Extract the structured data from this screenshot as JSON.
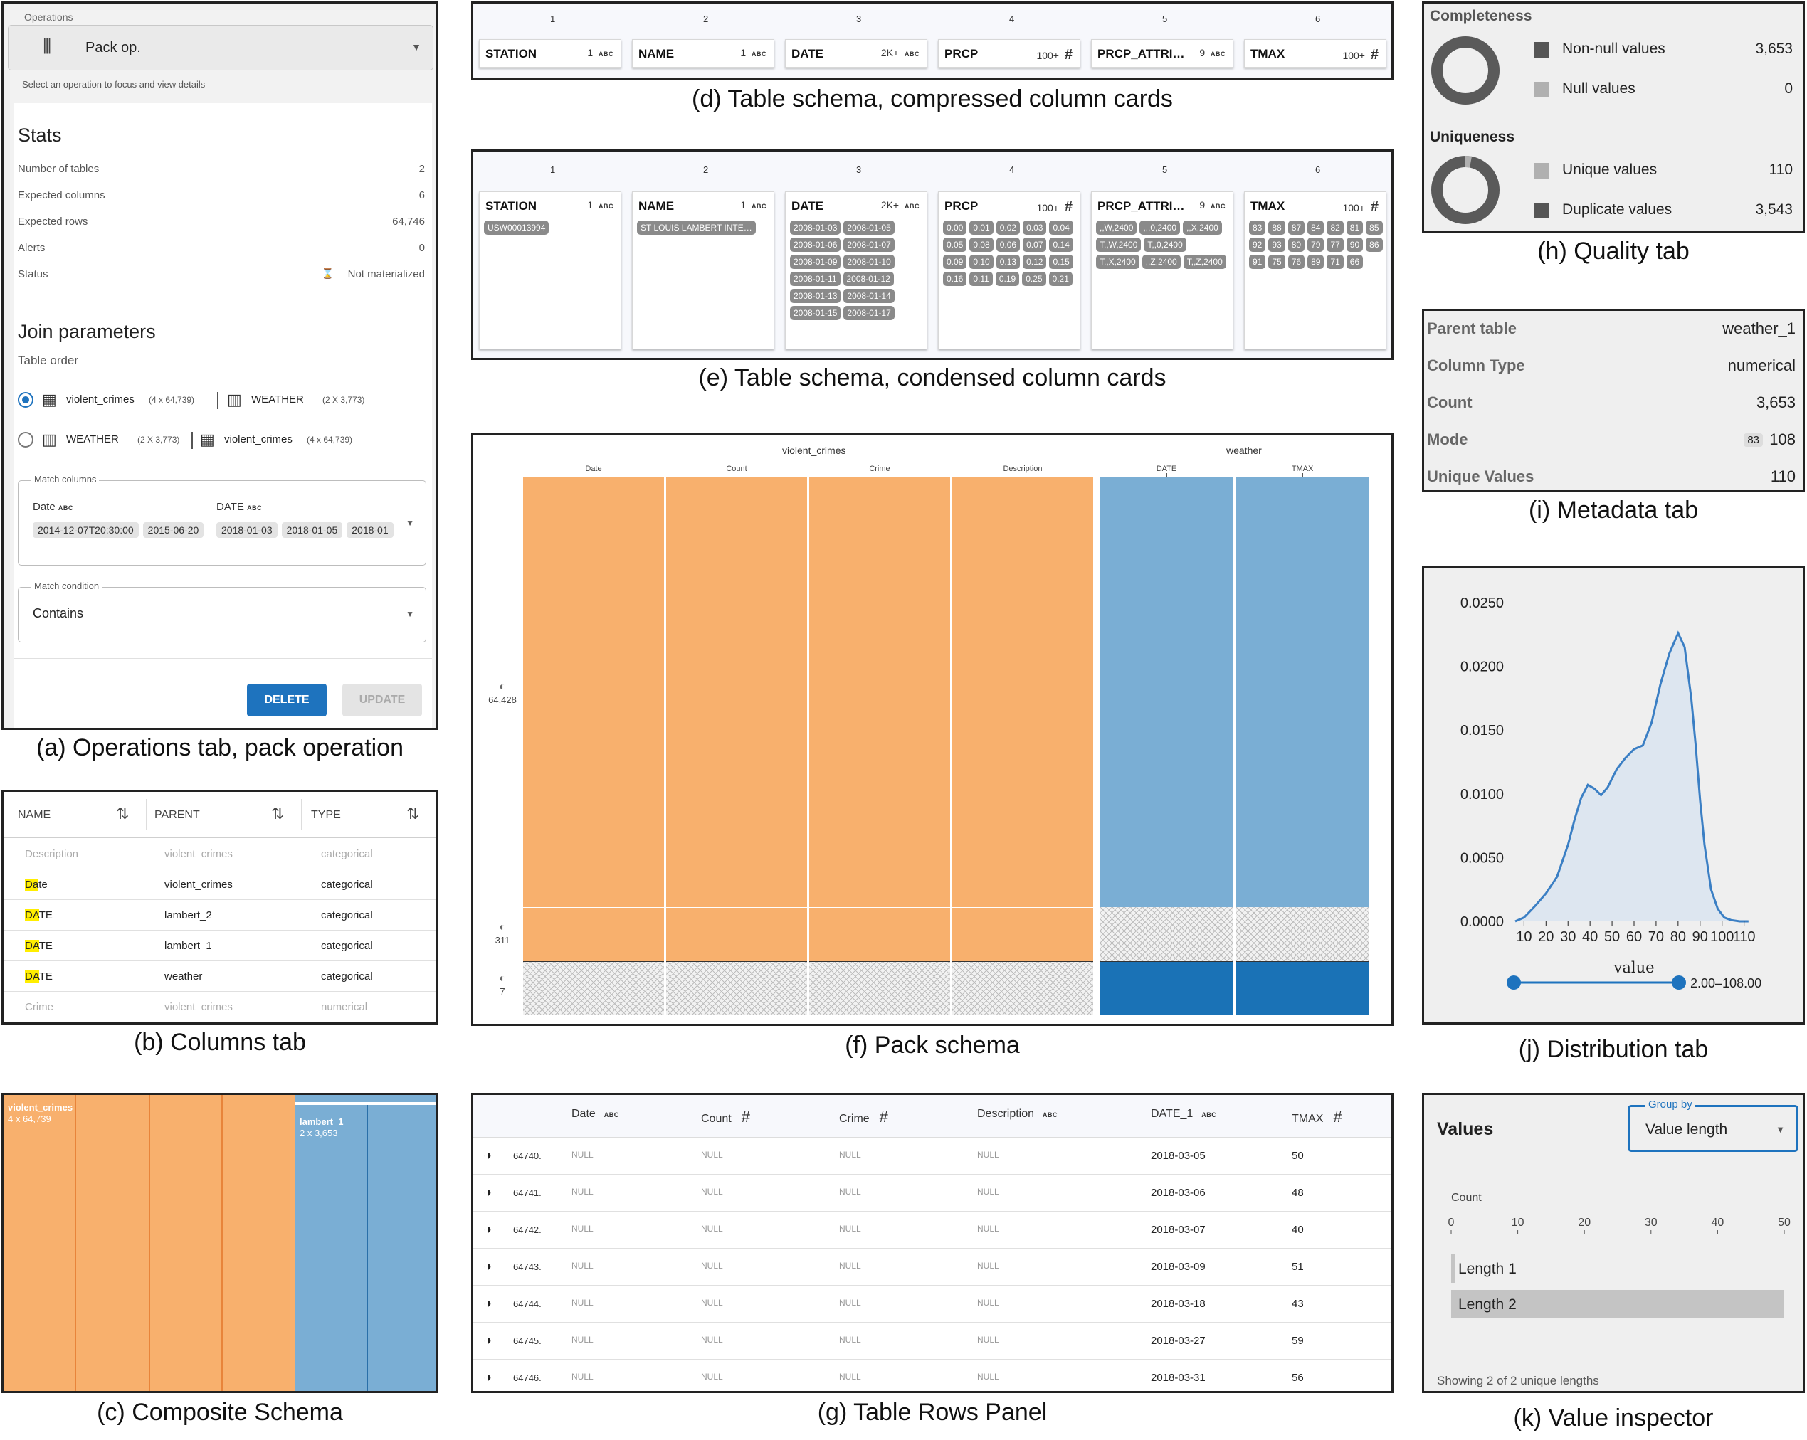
{
  "captions": {
    "a": "(a) Operations tab, pack operation",
    "b": "(b) Columns tab",
    "c": "(c) Composite Schema",
    "d": "(d) Table schema, compressed column cards",
    "e": "(e) Table schema, condensed column cards",
    "f": "(f) Pack schema",
    "g": "(g) Table Rows Panel",
    "h": "(h) Quality tab",
    "i": "(i) Metadata tab",
    "j": "(j) Distribution tab",
    "k": "(k) Value inspector"
  },
  "operations": {
    "select_label": "Operations",
    "select_value": "Pack op.",
    "select_help": "Select an operation to focus and view details",
    "stats_title": "Stats",
    "stats": [
      {
        "label": "Number of tables",
        "value": "2"
      },
      {
        "label": "Expected columns",
        "value": "6"
      },
      {
        "label": "Expected rows",
        "value": "64,746"
      },
      {
        "label": "Alerts",
        "value": "0"
      },
      {
        "label": "Status",
        "value": "Not materialized"
      }
    ],
    "join_title": "Join parameters",
    "table_order_label": "Table order",
    "order_options": [
      {
        "first": "violent_crimes",
        "first_dims": "(4 x 64,739)",
        "second": "WEATHER",
        "second_dims": "(2 X 3,773)",
        "selected": true
      },
      {
        "first": "WEATHER",
        "first_dims": "(2 X 3,773)",
        "second": "violent_crimes",
        "second_dims": "(4 x 64,739)",
        "selected": false
      }
    ],
    "match_columns_label": "Match columns",
    "match_left_col": "Date",
    "match_right_col": "DATE",
    "match_left_values": [
      "2014-12-07T20:30:00",
      "2015-06-20"
    ],
    "match_right_values": [
      "2018-01-03",
      "2018-01-05",
      "2018-01"
    ],
    "match_condition_label": "Match condition",
    "match_condition_value": "Contains",
    "delete_label": "DELETE",
    "update_label": "UPDATE"
  },
  "columns_tab": {
    "headers": [
      "NAME",
      "PARENT",
      "TYPE"
    ],
    "rows": [
      {
        "hl": "",
        "rest": "Description",
        "parent": "violent_crimes",
        "type": "categorical",
        "dim": true
      },
      {
        "hl": "Da",
        "rest": "te",
        "parent": "violent_crimes",
        "type": "categorical",
        "dim": false
      },
      {
        "hl": "DA",
        "rest": "TE",
        "parent": "lambert_2",
        "type": "categorical",
        "dim": false
      },
      {
        "hl": "DA",
        "rest": "TE",
        "parent": "lambert_1",
        "type": "categorical",
        "dim": false
      },
      {
        "hl": "DA",
        "rest": "TE",
        "parent": "weather",
        "type": "categorical",
        "dim": false
      },
      {
        "hl": "",
        "rest": "Crime",
        "parent": "violent_crimes",
        "type": "numerical",
        "dim": true
      }
    ]
  },
  "composite": {
    "left_name": "violent_crimes",
    "left_dims": "4 x 64,739",
    "right_name": "lambert_1",
    "right_dims": "2 x 3,653"
  },
  "schema_cards": [
    {
      "index": "1",
      "name": "STATION",
      "count": "1",
      "type": "abc"
    },
    {
      "index": "2",
      "name": "NAME",
      "count": "1",
      "type": "abc"
    },
    {
      "index": "3",
      "name": "DATE",
      "count": "2K+",
      "type": "abc"
    },
    {
      "index": "4",
      "name": "PRCP",
      "count": "100+",
      "type": "#"
    },
    {
      "index": "5",
      "name": "PRCP_ATTRI…",
      "count": "9",
      "type": "abc"
    },
    {
      "index": "6",
      "name": "TMAX",
      "count": "100+",
      "type": "#"
    }
  ],
  "condensed_values": [
    [
      "USW00013994"
    ],
    [
      "ST LOUIS LAMBERT INTE…"
    ],
    [
      "2008-01-03",
      "2008-01-05",
      "2008-01-06",
      "2008-01-07",
      "2008-01-09",
      "2008-01-10",
      "2008-01-11",
      "2008-01-12",
      "2008-01-13",
      "2008-01-14",
      "2008-01-15",
      "2008-01-17"
    ],
    [
      "0.00",
      "0.01",
      "0.02",
      "0.03",
      "0.04",
      "0.05",
      "0.08",
      "0.06",
      "0.07",
      "0.14",
      "0.09",
      "0.10",
      "0.13",
      "0.12",
      "0.15",
      "0.16",
      "0.11",
      "0.19",
      "0.25",
      "0.21"
    ],
    [
      ",,W,2400",
      ",,,0,2400",
      ",,X,2400",
      "T,,W,2400",
      "T,,0,2400",
      "T,,X,2400",
      ",,Z,2400",
      "T,,Z,2400"
    ],
    [
      "83",
      "88",
      "87",
      "84",
      "82",
      "81",
      "85",
      "92",
      "93",
      "80",
      "79",
      "77",
      "90",
      "86",
      "91",
      "75",
      "76",
      "89",
      "71",
      "66"
    ]
  ],
  "abc_label": "ABC",
  "pack": {
    "left_table": "violent_crimes",
    "right_table": "weather",
    "left_columns": [
      "Date",
      "Count",
      "Crime",
      "Description"
    ],
    "right_columns": [
      "DATE",
      "TMAX"
    ],
    "counts": [
      "64,428",
      "311",
      "7"
    ]
  },
  "rows_panel": {
    "headers": [
      {
        "name": "Date",
        "type": "abc"
      },
      {
        "name": "Count",
        "type": "#"
      },
      {
        "name": "Crime",
        "type": "#"
      },
      {
        "name": "Description",
        "type": "abc"
      },
      {
        "name": "DATE_1",
        "type": "abc"
      },
      {
        "name": "TMAX",
        "type": "#"
      }
    ],
    "rows": [
      {
        "id": "64740.",
        "c": [
          "NULL",
          "NULL",
          "NULL",
          "NULL",
          "2018-03-05",
          "50"
        ]
      },
      {
        "id": "64741.",
        "c": [
          "NULL",
          "NULL",
          "NULL",
          "NULL",
          "2018-03-06",
          "48"
        ]
      },
      {
        "id": "64742.",
        "c": [
          "NULL",
          "NULL",
          "NULL",
          "NULL",
          "2018-03-07",
          "40"
        ]
      },
      {
        "id": "64743.",
        "c": [
          "NULL",
          "NULL",
          "NULL",
          "NULL",
          "2018-03-09",
          "51"
        ]
      },
      {
        "id": "64744.",
        "c": [
          "NULL",
          "NULL",
          "NULL",
          "NULL",
          "2018-03-18",
          "43"
        ]
      },
      {
        "id": "64745.",
        "c": [
          "NULL",
          "NULL",
          "NULL",
          "NULL",
          "2018-03-27",
          "59"
        ]
      },
      {
        "id": "64746.",
        "c": [
          "NULL",
          "NULL",
          "NULL",
          "NULL",
          "2018-03-31",
          "56"
        ]
      }
    ]
  },
  "quality": {
    "completeness_title": "Completeness",
    "nonnull_label": "Non-null values",
    "nonnull_value": "3,653",
    "null_label": "Null values",
    "null_value": "0",
    "uniqueness_title": "Uniqueness",
    "unique_label": "Unique values",
    "unique_value": "110",
    "dup_label": "Duplicate values",
    "dup_value": "3,543",
    "completeness_fraction": 1.0,
    "uniqueness_fraction": 0.0301
  },
  "metadata": [
    {
      "label": "Parent table",
      "value": "weather_1",
      "badge": ""
    },
    {
      "label": "Column Type",
      "value": "numerical",
      "badge": ""
    },
    {
      "label": "Count",
      "value": "3,653",
      "badge": ""
    },
    {
      "label": "Mode",
      "value": "108",
      "badge": "83"
    },
    {
      "label": "Unique Values",
      "value": "110",
      "badge": ""
    }
  ],
  "chart_data": {
    "type": "area",
    "xlabel": "value",
    "ylabel": "",
    "x_ticks": [
      "10",
      "20",
      "30",
      "40",
      "50",
      "60",
      "70",
      "80",
      "90",
      "100",
      "110"
    ],
    "y_ticks": [
      "0.0250",
      "0.0200",
      "0.0150",
      "0.0100",
      "0.0050",
      "0.0000"
    ],
    "xlim": [
      6,
      114
    ],
    "ylim": [
      0,
      0.026
    ],
    "x": [
      6,
      10,
      15,
      20,
      25,
      30,
      33,
      36,
      39,
      42,
      45,
      48,
      52,
      56,
      60,
      64,
      68,
      72,
      76,
      80,
      83,
      86,
      88,
      90,
      92,
      95,
      98,
      101,
      104,
      108,
      112
    ],
    "y": [
      0.0,
      0.0003,
      0.0012,
      0.0022,
      0.0035,
      0.006,
      0.008,
      0.0097,
      0.0107,
      0.0104,
      0.0099,
      0.0105,
      0.0119,
      0.0128,
      0.0135,
      0.0138,
      0.0156,
      0.0186,
      0.021,
      0.0226,
      0.0215,
      0.0175,
      0.0138,
      0.0095,
      0.006,
      0.0025,
      0.001,
      0.0003,
      0.0001,
      0.0,
      0.0
    ],
    "range_label": "2.00–108.00",
    "range": [
      2,
      108
    ],
    "fill_color": "#dde6f0",
    "line_color": "#3b7fc4"
  },
  "value_inspector": {
    "title": "Values",
    "group_by_label": "Group by",
    "group_by_value": "Value length",
    "axis_title": "Count",
    "ticks": [
      "0",
      "10",
      "20",
      "30",
      "40",
      "50"
    ],
    "max": 50,
    "bars": [
      {
        "label": "Length 1",
        "value": 0.6
      },
      {
        "label": "Length 2",
        "value": 50
      }
    ],
    "footer": "Showing 2 of 2 unique lengths"
  },
  "colors": {
    "orange": "#f8b06d",
    "blue": "#7aaed4",
    "dark_blue": "#1a72b6",
    "primary": "#1e73be"
  }
}
